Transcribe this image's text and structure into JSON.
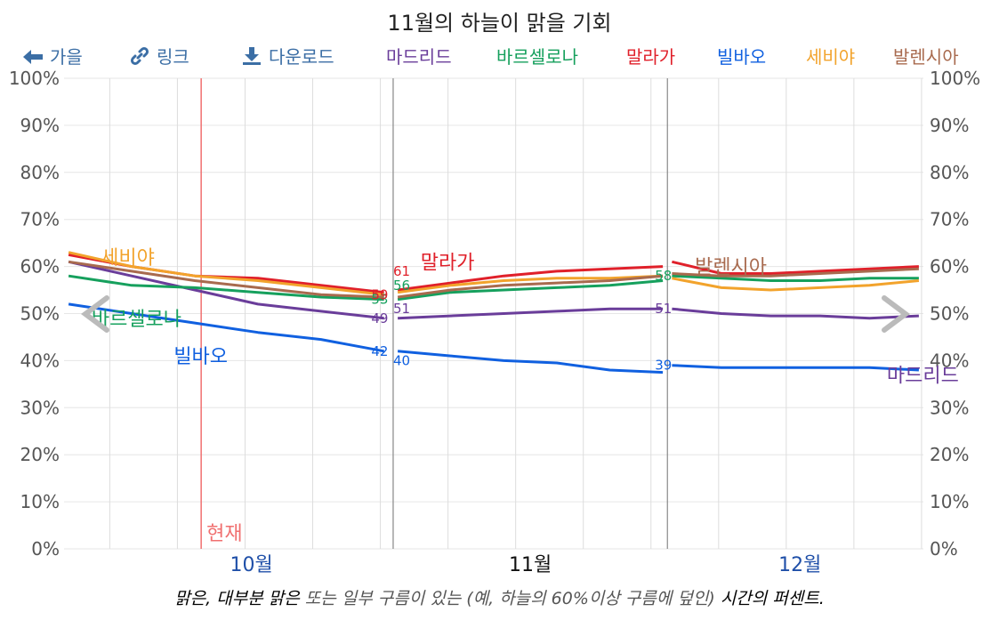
{
  "title": "11월의 하늘이 맑을 기회",
  "toolbar": {
    "back_label": "가을",
    "link_label": "링크",
    "download_label": "다운로드",
    "action_color": "#3b6ea5"
  },
  "caption": {
    "part1": "맑은, 대부분 맑은",
    "part2": " 또는 일부 구름이 있는 ",
    "part3": "(예, 하늘의 60%이상 구름에 덮인)",
    "part4": " 시간의 퍼센트."
  },
  "chart_data": {
    "type": "line",
    "title": "11월의 하늘이 맑을 기회",
    "ylabel": "",
    "xlabel": "",
    "ylim": [
      0,
      100
    ],
    "yticks": [
      "0%",
      "10%",
      "20%",
      "30%",
      "40%",
      "50%",
      "60%",
      "70%",
      "80%",
      "90%",
      "100%"
    ],
    "month_labels": [
      "10월",
      "11월",
      "12월"
    ],
    "current_month": "11월",
    "now_label": "현재",
    "x_range_days": [
      -36,
      58
    ],
    "now_day": -21,
    "month_bounds_day": [
      0,
      30
    ],
    "legend_position": "top",
    "nav": {
      "prev": "previous-month",
      "next": "next-month"
    },
    "series": [
      {
        "name": "마드리드",
        "color": "#6a3d9a",
        "label": "마드리드",
        "start_values": [
          61,
          58,
          55,
          52,
          50.5,
          49
        ],
        "mid_values": [
          49,
          49.5,
          50,
          50.5,
          51,
          51
        ],
        "end_values": [
          51,
          50,
          49.5,
          49.5,
          49,
          49.5
        ],
        "month_values": [
          49,
          51,
          51
        ]
      },
      {
        "name": "바르셀로나",
        "color": "#16a05d",
        "label": "바르셀로나",
        "start_values": [
          58,
          56,
          55.5,
          54.5,
          53.5,
          53
        ],
        "mid_values": [
          53,
          54.5,
          55,
          55.5,
          56,
          57
        ],
        "end_values": [
          58,
          57.5,
          57,
          57,
          57.5,
          57.5
        ],
        "month_values": [
          53,
          56,
          58
        ]
      },
      {
        "name": "말라가",
        "color": "#e0202a",
        "label": "말라가",
        "start_values": [
          62.5,
          60,
          58,
          57.5,
          56,
          54.5
        ],
        "mid_values": [
          55,
          56.5,
          58,
          59,
          59.5,
          60
        ],
        "end_values": [
          61,
          58.5,
          58.5,
          59,
          59.5,
          60
        ],
        "month_values": [
          54,
          59,
          61
        ]
      },
      {
        "name": "빌바오",
        "color": "#1060e0",
        "label": "빌바오",
        "start_values": [
          52,
          50,
          48,
          46,
          44.5,
          42
        ],
        "mid_values": [
          42,
          41,
          40,
          39.5,
          38,
          37.5
        ],
        "end_values": [
          39,
          38.5,
          38.5,
          38.5,
          38.5,
          38
        ],
        "month_values": [
          42,
          40,
          39
        ]
      },
      {
        "name": "세비야",
        "color": "#f2a32c",
        "label": "세비야",
        "start_values": [
          63,
          60,
          58,
          57,
          55.5,
          54
        ],
        "mid_values": [
          54.5,
          56,
          57,
          57.5,
          57.5,
          58
        ],
        "end_values": [
          57.5,
          55.5,
          55,
          55.5,
          56,
          57
        ],
        "month_values": [
          54,
          58,
          58
        ]
      },
      {
        "name": "발렌시아",
        "color": "#a86a4e",
        "label": "발렌시아",
        "start_values": [
          61,
          59,
          57,
          55.5,
          54,
          53.5
        ],
        "mid_values": [
          53.5,
          55,
          56,
          56.5,
          57,
          58
        ],
        "end_values": [
          58.5,
          58,
          58,
          58.5,
          59,
          59.5
        ],
        "month_values": [
          53,
          57,
          59
        ]
      }
    ],
    "value_labels": [
      {
        "series": 0,
        "text": "49"
      },
      {
        "series": 0,
        "text": "51"
      },
      {
        "series": 0,
        "text": "51"
      },
      {
        "series": 1,
        "text": "53"
      },
      {
        "series": 1,
        "text": "56"
      },
      {
        "series": 1,
        "text": "58"
      },
      {
        "series": 2,
        "text": "59"
      },
      {
        "series": 2,
        "text": "61"
      },
      {
        "series": 3,
        "text": "42"
      },
      {
        "series": 3,
        "text": "40"
      },
      {
        "series": 3,
        "text": "39"
      }
    ]
  }
}
